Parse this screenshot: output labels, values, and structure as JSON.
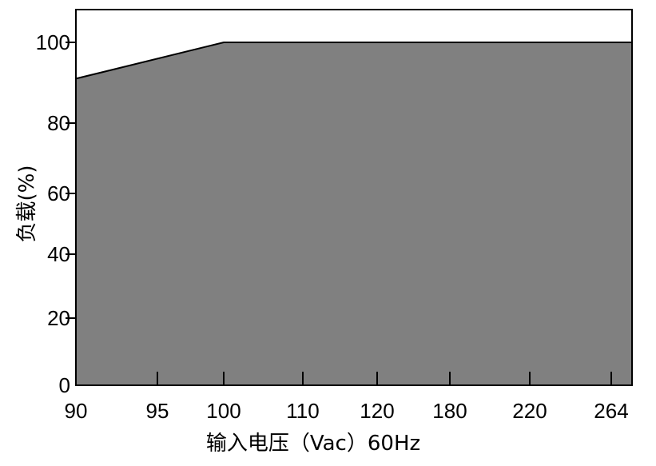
{
  "chart_data": {
    "type": "area",
    "xlabel": "输入电压（Vac）60Hz",
    "ylabel": "负载(%)",
    "x_ticks": [
      "90",
      "95",
      "100",
      "110",
      "120",
      "180",
      "220",
      "264"
    ],
    "y_ticks": [
      "0",
      "20",
      "40",
      "60",
      "80",
      "100"
    ],
    "ylim": [
      0,
      110
    ],
    "grid": false,
    "colors": {
      "fill": "#808080",
      "line": "#000000",
      "frame": "#000000"
    },
    "series": [
      {
        "x": [
          "90",
          "100",
          "110",
          "120",
          "180",
          "220",
          "264"
        ],
        "values": [
          91,
          100,
          100,
          100,
          100,
          100,
          100
        ]
      }
    ]
  }
}
